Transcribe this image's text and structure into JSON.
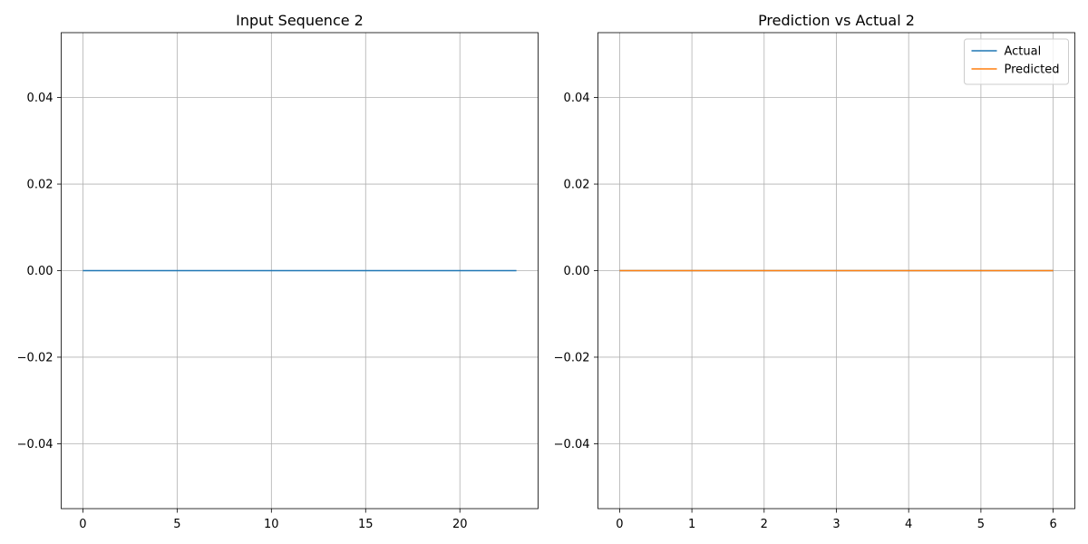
{
  "chart_data": [
    {
      "type": "line",
      "title": "Input Sequence 2",
      "xlabel": "",
      "ylabel": "",
      "xlim": [
        -1.15,
        24.15
      ],
      "ylim": [
        -0.055,
        0.055
      ],
      "xticks": [
        0,
        5,
        10,
        15,
        20
      ],
      "yticks": [
        0.04,
        0.02,
        0.0,
        -0.02,
        -0.04
      ],
      "xtick_labels": [
        "0",
        "5",
        "10",
        "15",
        "20"
      ],
      "ytick_labels": [
        "0.04",
        "0.02",
        "0.00",
        "−0.02",
        "−0.04"
      ],
      "grid": true,
      "series": [
        {
          "color": "#1f77b4",
          "x": [
            0,
            1,
            2,
            3,
            4,
            5,
            6,
            7,
            8,
            9,
            10,
            11,
            12,
            13,
            14,
            15,
            16,
            17,
            18,
            19,
            20,
            21,
            22,
            23
          ],
          "y": [
            0,
            0,
            0,
            0,
            0,
            0,
            0,
            0,
            0,
            0,
            0,
            0,
            0,
            0,
            0,
            0,
            0,
            0,
            0,
            0,
            0,
            0,
            0,
            0
          ]
        }
      ]
    },
    {
      "type": "line",
      "title": "Prediction vs Actual 2",
      "xlabel": "",
      "ylabel": "",
      "xlim": [
        -0.3,
        6.3
      ],
      "ylim": [
        -0.055,
        0.055
      ],
      "xticks": [
        0,
        1,
        2,
        3,
        4,
        5,
        6
      ],
      "yticks": [
        0.04,
        0.02,
        0.0,
        -0.02,
        -0.04
      ],
      "xtick_labels": [
        "0",
        "1",
        "2",
        "3",
        "4",
        "5",
        "6"
      ],
      "ytick_labels": [
        "0.04",
        "0.02",
        "0.00",
        "−0.02",
        "−0.04"
      ],
      "grid": true,
      "legend": "top-right",
      "series": [
        {
          "name": "Actual",
          "color": "#1f77b4",
          "x": [
            0,
            1,
            2,
            3,
            4,
            5,
            6
          ],
          "y": [
            0,
            0,
            0,
            0,
            0,
            0,
            0
          ]
        },
        {
          "name": "Predicted",
          "color": "#ff7f0e",
          "x": [
            0,
            1,
            2,
            3,
            4,
            5,
            6
          ],
          "y": [
            0,
            0,
            0,
            0,
            0,
            0,
            0
          ]
        }
      ]
    }
  ]
}
